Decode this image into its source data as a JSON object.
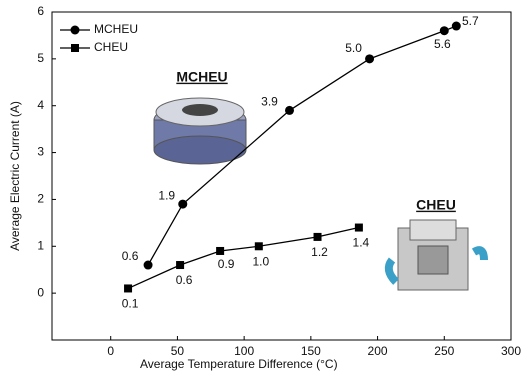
{
  "chart_data": {
    "type": "line",
    "x_label": "Average Temperature Difference (°C)",
    "y_label": "Average Electric Current (A)",
    "xlim": [
      -44,
      300
    ],
    "xticks": [
      0,
      50,
      100,
      150,
      200,
      250,
      300
    ],
    "ylim": [
      -1,
      6
    ],
    "yticks": [
      0,
      1,
      2,
      3,
      4,
      5,
      6
    ],
    "legend": "top-left",
    "annotations": [
      "MCHEU",
      "CHEU"
    ],
    "series": [
      {
        "name": "MCHEU",
        "color": "#000000",
        "marker": "circle",
        "x": [
          28,
          54,
          134,
          194,
          250,
          259
        ],
        "values": [
          0.6,
          1.9,
          3.9,
          5.0,
          5.6,
          5.7
        ],
        "value_labels": [
          "0.6",
          "1.9",
          "3.9",
          "5.0",
          "5.6",
          "5.7"
        ]
      },
      {
        "name": "CHEU",
        "color": "#000000",
        "marker": "square",
        "x": [
          13,
          52,
          82,
          111,
          155,
          186
        ],
        "values": [
          0.1,
          0.6,
          0.9,
          1.0,
          1.2,
          1.4
        ],
        "value_labels": [
          "0.1",
          "0.6",
          "0.9",
          "1.0",
          "1.2",
          "1.4"
        ]
      }
    ]
  }
}
